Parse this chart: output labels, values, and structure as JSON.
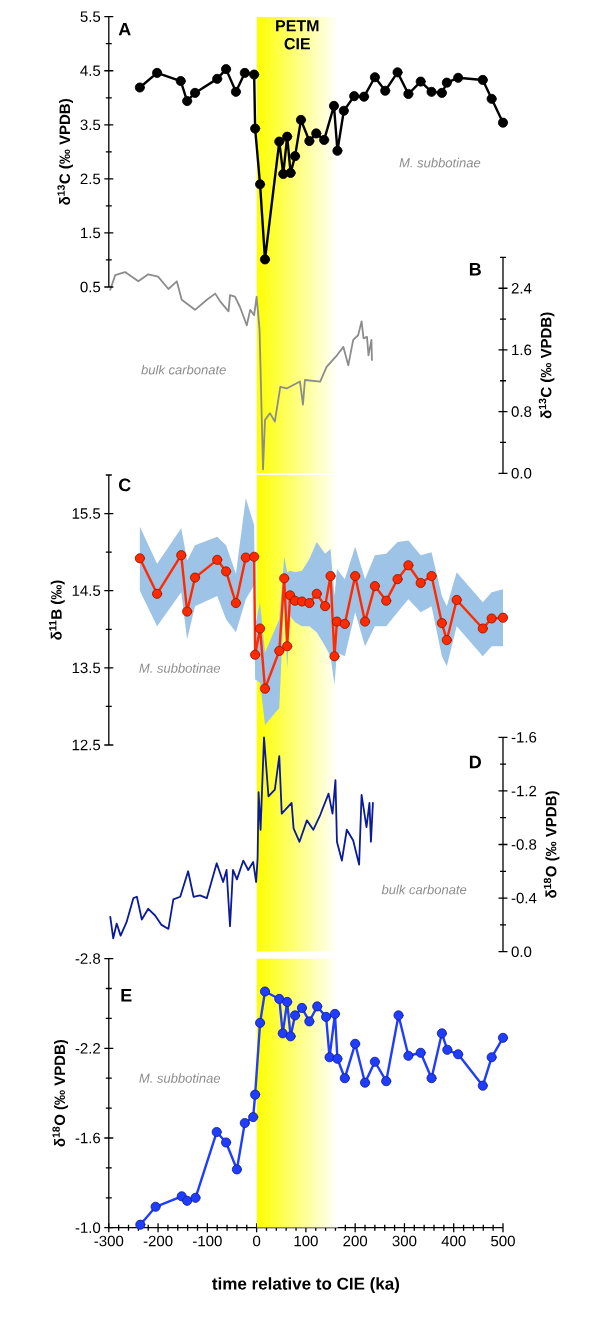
{
  "chart_data": [
    {
      "type": "line",
      "title": "A",
      "ylabel": "δ$^{13}$C (‰ VPDB)",
      "xlim": [
        -300,
        500
      ],
      "ylim": [
        0.5,
        5.5
      ],
      "tick_labels": "y",
      "marker": "circle",
      "yticks": [
        5.5,
        {
          "value": 5.0,
          "label": null
        },
        4.5,
        {
          "value": 4.0,
          "label": null
        },
        3.5,
        {
          "value": 3.0,
          "label": null
        },
        2.5,
        {
          "value": 2.0,
          "label": null
        },
        1.5,
        {
          "value": 1.0,
          "label": null
        },
        0.5
      ],
      "bands": [
        {
          "axis": "x",
          "from": 0,
          "to": 165,
          "label": "PETM CIE",
          "color": "#ffff00"
        }
      ],
      "series": [
        {
          "name": "M. subbotinae",
          "color": "#000000",
          "x": [
            -237,
            -202,
            -154,
            -141,
            -125,
            -80,
            -62,
            -42,
            -24,
            -5,
            -3,
            7,
            17,
            46,
            54,
            62,
            69,
            78,
            90,
            107,
            121,
            137,
            157,
            164,
            177,
            198,
            218,
            240,
            261,
            286,
            308,
            333,
            355,
            376,
            386,
            409,
            459,
            477,
            500
          ],
          "values": [
            4.19,
            4.46,
            4.31,
            3.94,
            4.09,
            4.35,
            4.53,
            4.11,
            4.46,
            4.43,
            3.43,
            2.4,
            1.01,
            3.19,
            2.59,
            3.28,
            2.61,
            2.92,
            3.59,
            3.2,
            3.34,
            3.22,
            3.85,
            3.02,
            3.76,
            4.03,
            4.02,
            4.38,
            4.13,
            4.47,
            4.07,
            4.3,
            4.11,
            4.09,
            4.28,
            4.37,
            4.33,
            3.98,
            3.54
          ]
        }
      ]
    },
    {
      "type": "line",
      "title": "B",
      "ylabel": "δ$^{13}$C (‰ VPDB)",
      "xlim": [
        -300,
        500
      ],
      "ylim": [
        0,
        2.8
      ],
      "tick_labels": "y",
      "yticks": [
        {
          "value": 2.8,
          "label": null
        },
        2.4,
        {
          "value": 2.0,
          "label": null
        },
        1.6,
        {
          "value": 1.2,
          "label": null
        },
        0.8,
        {
          "value": 0.4,
          "label": null
        },
        {
          "value": 0,
          "label": "0.0"
        }
      ],
      "bands": [
        {
          "axis": "x",
          "from": 0,
          "to": 165,
          "color": "#ffff00"
        }
      ],
      "series": [
        {
          "name": "bulk carbonate",
          "color": "#8c8c8c",
          "x": [
            -297,
            -287,
            -267,
            -240,
            -220,
            -200,
            -179,
            -162,
            -152,
            -125,
            -101,
            -84,
            -74,
            -57,
            -54,
            -44,
            -34,
            -20,
            -13,
            -5,
            0,
            6,
            13,
            17,
            27,
            37,
            48,
            61,
            88,
            94,
            98,
            129,
            142,
            163,
            176,
            186,
            196,
            206,
            213,
            217,
            224,
            227,
            233,
            234
          ],
          "values": [
            2.38,
            2.57,
            2.61,
            2.49,
            2.58,
            2.55,
            2.39,
            2.49,
            2.25,
            2.12,
            2.25,
            2.33,
            2.23,
            2.1,
            2.31,
            2.29,
            2.16,
            1.92,
            2.12,
            2.05,
            2.29,
            1.86,
            0.05,
            0.69,
            0.78,
            0.67,
            1.12,
            1.1,
            1.19,
            0.89,
            1.21,
            1.19,
            1.38,
            1.53,
            1.64,
            1.4,
            1.73,
            1.79,
            1.97,
            1.75,
            1.77,
            1.53,
            1.73,
            1.47
          ]
        }
      ]
    },
    {
      "type": "line",
      "title": "C",
      "ylabel": "δ$^{11}$B (‰)",
      "xlim": [
        -300,
        500
      ],
      "ylim": [
        12.5,
        16.0
      ],
      "tick_labels": "y",
      "marker": "circle",
      "yticks": [
        {
          "value": 16.0,
          "label": null
        },
        15.5,
        {
          "value": 15.0,
          "label": null
        },
        14.5,
        {
          "value": 14.0,
          "label": null
        },
        13.5,
        {
          "value": 13.0,
          "label": null
        },
        12.5
      ],
      "bands": [
        {
          "axis": "x",
          "from": 0,
          "to": 165,
          "color": "#ffff00"
        }
      ],
      "series": [
        {
          "name": "M. subbotinae",
          "color": "#ff2a00",
          "x": [
            -237,
            -202,
            -153,
            -141,
            -125,
            -80,
            -62,
            -42,
            -22,
            -5,
            -3,
            7,
            17,
            46,
            56,
            62,
            68,
            78,
            92,
            107,
            122,
            139,
            150,
            158,
            163,
            179,
            200,
            220,
            240,
            263,
            286,
            308,
            333,
            355,
            376,
            386,
            406,
            459,
            477,
            500
          ],
          "values": [
            14.92,
            14.46,
            14.96,
            14.23,
            14.67,
            14.9,
            14.75,
            14.34,
            14.93,
            14.94,
            13.67,
            14.01,
            13.23,
            13.72,
            14.66,
            13.78,
            14.44,
            14.37,
            14.36,
            14.34,
            14.46,
            14.3,
            14.69,
            13.65,
            14.1,
            14.07,
            14.69,
            14.1,
            14.56,
            14.37,
            14.65,
            14.83,
            14.6,
            14.69,
            14.08,
            13.86,
            14.38,
            14.01,
            14.14,
            14.15
          ],
          "upper": [
            15.33,
            14.85,
            15.31,
            14.89,
            15.09,
            15.2,
            15.09,
            14.72,
            15.7,
            15.35,
            14.04,
            14.35,
            13.7,
            14.13,
            14.94,
            14.74,
            14.76,
            14.74,
            14.76,
            14.91,
            15.13,
            14.98,
            15.04,
            14.43,
            14.78,
            14.65,
            15.07,
            14.65,
            14.96,
            14.98,
            15.13,
            15.15,
            14.96,
            15.0,
            14.43,
            14.3,
            14.74,
            14.35,
            14.48,
            14.52
          ],
          "lower": [
            14.5,
            14.04,
            14.48,
            13.87,
            14.3,
            14.43,
            14.13,
            13.96,
            14.39,
            14.57,
            13.35,
            13.31,
            12.76,
            12.98,
            14.43,
            13.48,
            14.17,
            14.09,
            14.04,
            14.04,
            13.96,
            13.78,
            13.65,
            13.28,
            13.7,
            13.65,
            14.22,
            13.78,
            14.04,
            14.04,
            14.22,
            14.39,
            14.22,
            14.3,
            13.65,
            13.52,
            14.04,
            13.65,
            13.78,
            13.78
          ]
        }
      ]
    },
    {
      "type": "line",
      "title": "D",
      "ylabel": "δ$^{18}$O (‰ VPDB)",
      "xlim": [
        -300,
        500
      ],
      "ylim": [
        0,
        -1.6
      ],
      "tick_labels": "y",
      "yticks": [
        -1.6,
        {
          "value": -1.4,
          "label": null
        },
        -1.2,
        {
          "value": -1.0,
          "label": null
        },
        -0.8,
        {
          "value": -0.6,
          "label": null
        },
        -0.4,
        {
          "value": -0.2,
          "label": null
        },
        {
          "value": 0,
          "label": "0.0"
        }
      ],
      "bands": [
        {
          "axis": "x",
          "from": 0,
          "to": 165,
          "color": "#ffff00"
        }
      ],
      "series": [
        {
          "name": "bulk carbonate",
          "color": "#0a1a99",
          "x": [
            -297,
            -291,
            -284,
            -276,
            -264,
            -250,
            -243,
            -233,
            -220,
            -206,
            -193,
            -179,
            -169,
            -155,
            -139,
            -128,
            -115,
            -101,
            -81,
            -68,
            -61,
            -54,
            -48,
            -40,
            -27,
            -17,
            -7,
            -1,
            2,
            4,
            8,
            15,
            24,
            37,
            46,
            51,
            71,
            75,
            87,
            102,
            115,
            129,
            146,
            154,
            160,
            163,
            173,
            183,
            196,
            208,
            213,
            223,
            229,
            232,
            236
          ],
          "values": [
            -0.26,
            -0.1,
            -0.21,
            -0.12,
            -0.22,
            -0.4,
            -0.41,
            -0.24,
            -0.32,
            -0.27,
            -0.2,
            -0.17,
            -0.39,
            -0.41,
            -0.6,
            -0.41,
            -0.42,
            -0.4,
            -0.66,
            -0.52,
            -0.61,
            -0.19,
            -0.61,
            -0.54,
            -0.68,
            -0.61,
            -0.67,
            -0.52,
            -0.7,
            -1.19,
            -0.91,
            -1.6,
            -1.16,
            -1.21,
            -1.46,
            -1.03,
            -1.11,
            -0.92,
            -0.82,
            -0.98,
            -0.91,
            -1.02,
            -1.18,
            -1.03,
            -1.28,
            -0.82,
            -0.68,
            -0.91,
            -0.83,
            -0.65,
            -1.17,
            -0.93,
            -1.11,
            -0.82,
            -1.11
          ]
        }
      ]
    },
    {
      "type": "line",
      "title": "E",
      "ylabel": "δ$^{18}$O (‰ VPDB)",
      "xlabel": "time relative to CIE (ka)",
      "xlim": [
        -300,
        500
      ],
      "ylim": [
        -1.0,
        -2.8
      ],
      "marker": "circle",
      "xticks": [
        -300,
        {
          "value": -280,
          "label": null
        },
        {
          "value": -260,
          "label": null
        },
        {
          "value": -240,
          "label": null
        },
        {
          "value": -220,
          "label": null
        },
        -200,
        {
          "value": -180,
          "label": null
        },
        {
          "value": -160,
          "label": null
        },
        {
          "value": -140,
          "label": null
        },
        {
          "value": -120,
          "label": null
        },
        -100,
        {
          "value": -80,
          "label": null
        },
        {
          "value": -60,
          "label": null
        },
        {
          "value": -40,
          "label": null
        },
        {
          "value": -20,
          "label": null
        },
        0,
        {
          "value": 20,
          "label": null
        },
        {
          "value": 40,
          "label": null
        },
        {
          "value": 60,
          "label": null
        },
        {
          "value": 80,
          "label": null
        },
        100,
        {
          "value": 120,
          "label": null
        },
        {
          "value": 140,
          "label": null
        },
        {
          "value": 160,
          "label": null
        },
        {
          "value": 180,
          "label": null
        },
        200,
        {
          "value": 220,
          "label": null
        },
        {
          "value": 240,
          "label": null
        },
        {
          "value": 260,
          "label": null
        },
        {
          "value": 280,
          "label": null
        },
        300,
        {
          "value": 320,
          "label": null
        },
        {
          "value": 340,
          "label": null
        },
        {
          "value": 360,
          "label": null
        },
        {
          "value": 380,
          "label": null
        },
        400,
        {
          "value": 420,
          "label": null
        },
        {
          "value": 440,
          "label": null
        },
        {
          "value": 460,
          "label": null
        },
        {
          "value": 480,
          "label": null
        },
        500
      ],
      "yticks": [
        -2.8,
        {
          "value": -2.6,
          "label": null
        },
        {
          "value": -2.4,
          "label": null
        },
        -2.2,
        {
          "value": -2.0,
          "label": null
        },
        {
          "value": -1.8,
          "label": null
        },
        -1.6,
        {
          "value": -1.4,
          "label": null
        },
        {
          "value": -1.2,
          "label": null
        },
        {
          "value": -1.0,
          "label": "-1.0"
        }
      ],
      "bands": [
        {
          "axis": "x",
          "from": 0,
          "to": 165,
          "color": "#ffff00"
        }
      ],
      "series": [
        {
          "name": "M. subbotinae",
          "color": "#1f3cff",
          "x": [
            -236,
            -205,
            -152,
            -141,
            -124,
            -81,
            -62,
            -40,
            -24,
            -7,
            -3,
            7,
            17,
            46,
            53,
            62,
            69,
            78,
            92,
            107,
            123,
            141,
            148,
            159,
            164,
            179,
            200,
            220,
            240,
            263,
            288,
            308,
            333,
            355,
            376,
            387,
            409,
            459,
            477,
            500
          ],
          "values": [
            -1.02,
            -1.14,
            -1.21,
            -1.18,
            -1.2,
            -1.64,
            -1.57,
            -1.39,
            -1.7,
            -1.74,
            -1.89,
            -2.37,
            -2.58,
            -2.53,
            -2.3,
            -2.51,
            -2.28,
            -2.42,
            -2.47,
            -2.38,
            -2.48,
            -2.41,
            -2.14,
            -2.43,
            -2.13,
            -2.0,
            -2.23,
            -1.97,
            -2.11,
            -1.98,
            -2.42,
            -2.15,
            -2.17,
            -2.0,
            -2.3,
            -2.19,
            -2.16,
            -1.95,
            -2.14,
            -2.27
          ]
        }
      ]
    }
  ]
}
